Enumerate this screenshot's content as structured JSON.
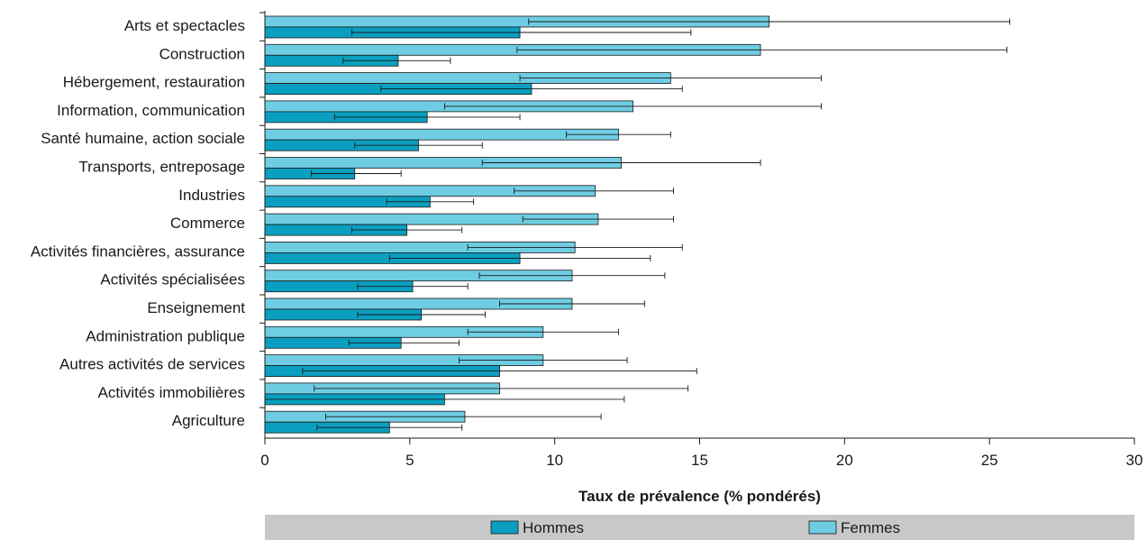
{
  "chart_data": {
    "type": "bar",
    "orientation": "horizontal",
    "categories": [
      "Arts et spectacles",
      "Construction",
      "Hébergement, restauration",
      "Information, communication",
      "Santé humaine, action sociale",
      "Transports, entreposage",
      "Industries",
      "Commerce",
      "Activités financières, assurance",
      "Activités spécialisées",
      "Enseignement",
      "Administration publique",
      "Autres activités de services",
      "Activités immobilières",
      "Agriculture"
    ],
    "series": [
      {
        "name": "Femmes",
        "color": "#6ecde3",
        "values": [
          17.4,
          17.1,
          14.0,
          12.7,
          12.2,
          12.3,
          11.4,
          11.5,
          10.7,
          10.6,
          10.6,
          9.6,
          9.6,
          8.1,
          6.9
        ],
        "error_low": [
          9.1,
          8.7,
          8.8,
          6.2,
          10.4,
          7.5,
          8.6,
          8.9,
          7.0,
          7.4,
          8.1,
          7.0,
          6.7,
          1.7,
          2.1
        ],
        "error_high": [
          25.7,
          25.6,
          19.2,
          19.2,
          14.0,
          17.1,
          14.1,
          14.1,
          14.4,
          13.8,
          13.1,
          12.2,
          12.5,
          14.6,
          11.6
        ]
      },
      {
        "name": "Hommes",
        "color": "#0a9fc0",
        "values": [
          8.8,
          4.6,
          9.2,
          5.6,
          5.3,
          3.1,
          5.7,
          4.9,
          8.8,
          5.1,
          5.4,
          4.7,
          8.1,
          6.2,
          4.3
        ],
        "error_low": [
          3.0,
          2.7,
          4.0,
          2.4,
          3.1,
          1.6,
          4.2,
          3.0,
          4.3,
          3.2,
          3.2,
          2.9,
          1.3,
          0.0,
          1.8
        ],
        "error_high": [
          14.7,
          6.4,
          14.4,
          8.8,
          7.5,
          4.7,
          7.2,
          6.8,
          13.3,
          7.0,
          7.6,
          6.7,
          14.9,
          12.4,
          6.8
        ]
      }
    ],
    "xlim": [
      0,
      30
    ],
    "xticks": [
      "0",
      "5",
      "10",
      "15",
      "20",
      "25",
      "30"
    ],
    "xlabel": "Taux de prévalence (% pondérés)",
    "grid": false,
    "legend": {
      "placement": "bottom",
      "items": [
        "Hommes",
        "Femmes"
      ]
    },
    "colors": {
      "hommes": "#0a9fc0",
      "femmes": "#6ecde3",
      "legend_band": "#c8c8c8",
      "axis": "#1a1a1a"
    }
  }
}
